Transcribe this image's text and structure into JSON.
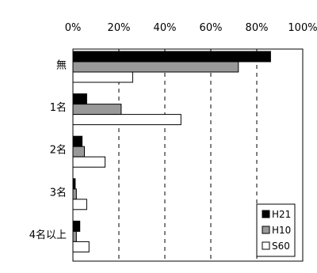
{
  "chart_data": {
    "type": "bar",
    "orientation": "horizontal",
    "categories": [
      "無",
      "1名",
      "2名",
      "3名",
      "4名以上"
    ],
    "x_ticks": [
      "0%",
      "20%",
      "40%",
      "60%",
      "80%",
      "100%"
    ],
    "xlim": [
      0,
      100
    ],
    "grid": true,
    "legend_position": "bottom-right",
    "series": [
      {
        "name": "H21",
        "color": "#000000",
        "values": [
          86,
          6,
          4,
          1,
          3
        ]
      },
      {
        "name": "H10",
        "color": "#999999",
        "values": [
          72,
          21,
          5,
          1.5,
          1.5
        ]
      },
      {
        "name": "S60",
        "color": "#ffffff",
        "values": [
          26,
          47,
          14,
          6,
          7
        ]
      }
    ]
  }
}
